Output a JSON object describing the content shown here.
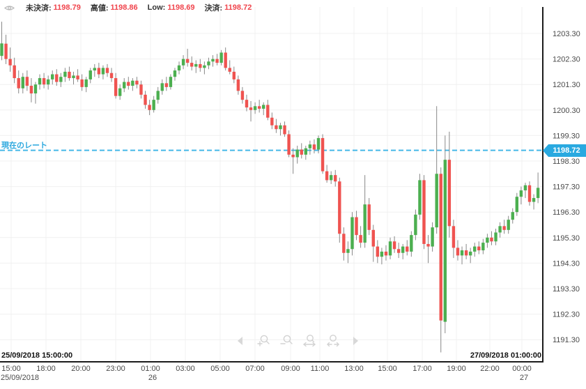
{
  "legend": {
    "items": [
      {
        "label": "未決済:",
        "value": "1198.79"
      },
      {
        "label": "高値:",
        "value": "1198.86"
      },
      {
        "label": "Low:",
        "value": "1198.69"
      },
      {
        "label": "決済:",
        "value": "1198.72"
      }
    ]
  },
  "current_rate": {
    "label": "現在のレート",
    "value": "1198.72"
  },
  "range_start": "25/09/2018 15:00:00",
  "range_end": "27/09/2018 01:00:00",
  "toolbar": {
    "icons": [
      "pan-left",
      "zoom-in",
      "zoom-out",
      "zoom-x",
      "zoom-reset",
      "pan-right"
    ]
  },
  "colors": {
    "up": "#4caf50",
    "down": "#ef5350",
    "grid": "#f0f0f0",
    "axis": "#1b1b1b",
    "axis_text": "#4a4a4a",
    "rate_line": "#45b8e8",
    "rate_badge": "#29a9e0",
    "legend_value": "#f0444c"
  },
  "chart_data": {
    "type": "candlestick",
    "title": "",
    "xlabel": "",
    "ylabel": "",
    "grid": true,
    "current_rate": 1198.72,
    "y_axis": {
      "ticks": [
        1203.3,
        1202.3,
        1201.3,
        1200.3,
        1199.3,
        1198.3,
        1197.3,
        1196.3,
        1195.3,
        1194.3,
        1193.3,
        1192.3,
        1191.3
      ],
      "ylim": [
        1190.8,
        1203.8
      ]
    },
    "x_axis": {
      "ticks": [
        {
          "label": "15:00",
          "sub": "25/09/2018"
        },
        {
          "label": "18:00"
        },
        {
          "label": "20:00"
        },
        {
          "label": "23:00"
        },
        {
          "label": "01:00",
          "sub": "26"
        },
        {
          "label": "03:00"
        },
        {
          "label": "05:00"
        },
        {
          "label": "07:00"
        },
        {
          "label": "09:00"
        },
        {
          "label": "11:00"
        },
        {
          "label": "13:00"
        },
        {
          "label": "15:00"
        },
        {
          "label": "17:00"
        },
        {
          "label": "19:00"
        },
        {
          "label": "22:00"
        },
        {
          "label": "00:00",
          "sub": "27"
        }
      ]
    },
    "candles_format": [
      "open",
      "high",
      "low",
      "close"
    ],
    "candles": [
      [
        1202.42,
        1203.76,
        1202.25,
        1202.91
      ],
      [
        1202.9,
        1203.25,
        1202.1,
        1202.3
      ],
      [
        1202.3,
        1202.75,
        1201.8,
        1202.05
      ],
      [
        1202.05,
        1202.35,
        1201.35,
        1201.55
      ],
      [
        1201.55,
        1201.85,
        1200.95,
        1201.15
      ],
      [
        1201.15,
        1201.75,
        1200.95,
        1201.6
      ],
      [
        1201.6,
        1201.85,
        1201.05,
        1201.25
      ],
      [
        1201.25,
        1201.55,
        1200.6,
        1200.95
      ],
      [
        1200.95,
        1201.4,
        1200.55,
        1201.3
      ],
      [
        1201.3,
        1201.7,
        1201.1,
        1201.55
      ],
      [
        1201.55,
        1201.75,
        1201.15,
        1201.3
      ],
      [
        1201.3,
        1201.65,
        1201.1,
        1201.5
      ],
      [
        1201.5,
        1201.85,
        1201.3,
        1201.7
      ],
      [
        1201.7,
        1201.9,
        1201.25,
        1201.4
      ],
      [
        1201.4,
        1201.75,
        1201.2,
        1201.6
      ],
      [
        1201.6,
        1201.95,
        1201.4,
        1201.8
      ],
      [
        1201.8,
        1202.0,
        1201.45,
        1201.55
      ],
      [
        1201.55,
        1201.8,
        1201.3,
        1201.65
      ],
      [
        1201.65,
        1201.9,
        1201.4,
        1201.5
      ],
      [
        1201.5,
        1201.7,
        1201.05,
        1201.2
      ],
      [
        1201.2,
        1201.6,
        1201.0,
        1201.5
      ],
      [
        1201.5,
        1201.95,
        1201.35,
        1201.85
      ],
      [
        1201.85,
        1202.1,
        1201.6,
        1201.95
      ],
      [
        1201.95,
        1202.15,
        1201.55,
        1201.7
      ],
      [
        1201.7,
        1202.05,
        1201.5,
        1201.95
      ],
      [
        1201.95,
        1202.1,
        1201.6,
        1201.75
      ],
      [
        1201.75,
        1201.95,
        1201.4,
        1201.55
      ],
      [
        1201.55,
        1201.75,
        1200.75,
        1200.85
      ],
      [
        1200.85,
        1201.3,
        1200.7,
        1201.15
      ],
      [
        1201.15,
        1201.55,
        1201.0,
        1201.4
      ],
      [
        1201.4,
        1201.6,
        1201.1,
        1201.25
      ],
      [
        1201.25,
        1201.55,
        1201.05,
        1201.45
      ],
      [
        1201.45,
        1201.6,
        1201.15,
        1201.3
      ],
      [
        1201.3,
        1201.45,
        1200.75,
        1200.9
      ],
      [
        1200.9,
        1201.05,
        1200.35,
        1200.5
      ],
      [
        1200.5,
        1200.7,
        1200.1,
        1200.3
      ],
      [
        1200.3,
        1200.85,
        1200.2,
        1200.7
      ],
      [
        1200.7,
        1201.2,
        1200.55,
        1201.05
      ],
      [
        1201.05,
        1201.5,
        1200.9,
        1201.35
      ],
      [
        1201.35,
        1201.6,
        1201.05,
        1201.2
      ],
      [
        1201.2,
        1201.7,
        1201.1,
        1201.6
      ],
      [
        1201.6,
        1201.95,
        1201.45,
        1201.85
      ],
      [
        1201.85,
        1202.2,
        1201.7,
        1202.05
      ],
      [
        1202.05,
        1202.45,
        1201.9,
        1202.3
      ],
      [
        1202.3,
        1202.7,
        1202.0,
        1202.15
      ],
      [
        1202.15,
        1202.4,
        1201.85,
        1202.0
      ],
      [
        1202.0,
        1202.25,
        1201.75,
        1202.1
      ],
      [
        1202.1,
        1202.3,
        1201.8,
        1201.95
      ],
      [
        1201.95,
        1202.2,
        1201.7,
        1202.05
      ],
      [
        1202.05,
        1202.35,
        1201.9,
        1202.2
      ],
      [
        1202.2,
        1202.45,
        1202.0,
        1202.3
      ],
      [
        1202.3,
        1202.5,
        1202.05,
        1202.15
      ],
      [
        1202.15,
        1202.65,
        1202.05,
        1202.55
      ],
      [
        1202.55,
        1202.75,
        1201.85,
        1201.95
      ],
      [
        1201.95,
        1202.25,
        1201.7,
        1201.8
      ],
      [
        1201.8,
        1202.0,
        1201.35,
        1201.5
      ],
      [
        1201.5,
        1201.65,
        1200.9,
        1201.05
      ],
      [
        1201.05,
        1201.2,
        1200.55,
        1200.7
      ],
      [
        1200.7,
        1200.9,
        1200.25,
        1200.4
      ],
      [
        1200.4,
        1200.65,
        1199.85,
        1200.3
      ],
      [
        1200.3,
        1200.6,
        1200.15,
        1200.45
      ],
      [
        1200.45,
        1200.7,
        1200.2,
        1200.35
      ],
      [
        1200.35,
        1200.6,
        1200.1,
        1200.5
      ],
      [
        1200.5,
        1200.7,
        1199.9,
        1200.0
      ],
      [
        1200.0,
        1200.2,
        1199.55,
        1199.7
      ],
      [
        1199.7,
        1199.95,
        1199.4,
        1199.55
      ],
      [
        1199.55,
        1199.8,
        1199.3,
        1199.7
      ],
      [
        1199.7,
        1199.85,
        1199.25,
        1199.35
      ],
      [
        1199.35,
        1199.5,
        1198.45,
        1198.55
      ],
      [
        1198.55,
        1198.8,
        1197.8,
        1198.45
      ],
      [
        1198.45,
        1198.9,
        1198.2,
        1198.75
      ],
      [
        1198.75,
        1199.0,
        1198.4,
        1198.55
      ],
      [
        1198.55,
        1198.9,
        1198.35,
        1198.8
      ],
      [
        1198.8,
        1199.1,
        1198.55,
        1198.95
      ],
      [
        1198.95,
        1199.15,
        1198.6,
        1198.75
      ],
      [
        1198.75,
        1199.3,
        1198.6,
        1199.2
      ],
      [
        1199.2,
        1199.35,
        1197.8,
        1197.9
      ],
      [
        1197.9,
        1198.15,
        1197.45,
        1197.55
      ],
      [
        1197.55,
        1197.9,
        1197.4,
        1197.75
      ],
      [
        1197.75,
        1197.95,
        1197.3,
        1197.5
      ],
      [
        1197.5,
        1197.65,
        1195.1,
        1195.45
      ],
      [
        1195.45,
        1195.7,
        1194.4,
        1194.7
      ],
      [
        1194.7,
        1195.15,
        1194.3,
        1194.85
      ],
      [
        1194.85,
        1196.3,
        1194.6,
        1196.1
      ],
      [
        1196.1,
        1196.35,
        1195.2,
        1195.4
      ],
      [
        1195.4,
        1195.75,
        1194.9,
        1195.1
      ],
      [
        1195.1,
        1197.75,
        1194.9,
        1196.6
      ],
      [
        1196.6,
        1196.85,
        1195.4,
        1195.6
      ],
      [
        1195.6,
        1195.8,
        1194.35,
        1194.95
      ],
      [
        1194.95,
        1195.2,
        1194.3,
        1194.55
      ],
      [
        1194.55,
        1194.9,
        1194.25,
        1194.75
      ],
      [
        1194.75,
        1195.0,
        1194.4,
        1194.6
      ],
      [
        1194.6,
        1195.3,
        1194.45,
        1195.15
      ],
      [
        1195.15,
        1195.35,
        1194.7,
        1194.85
      ],
      [
        1194.85,
        1195.1,
        1194.5,
        1194.7
      ],
      [
        1194.7,
        1195.05,
        1194.45,
        1194.95
      ],
      [
        1194.95,
        1195.2,
        1194.6,
        1194.75
      ],
      [
        1194.75,
        1195.55,
        1194.55,
        1195.4
      ],
      [
        1195.4,
        1196.4,
        1195.2,
        1196.2
      ],
      [
        1196.2,
        1197.8,
        1196.0,
        1197.55
      ],
      [
        1197.55,
        1197.75,
        1194.85,
        1195.05
      ],
      [
        1195.05,
        1195.4,
        1194.3,
        1194.95
      ],
      [
        1194.95,
        1195.9,
        1194.75,
        1195.7
      ],
      [
        1195.7,
        1200.45,
        1195.45,
        1197.8
      ],
      [
        1197.8,
        1198.05,
        1190.8,
        1192.05
      ],
      [
        1192.0,
        1199.3,
        1191.55,
        1198.35
      ],
      [
        1198.35,
        1199.45,
        1195.3,
        1195.75
      ],
      [
        1195.75,
        1196.0,
        1194.5,
        1194.9
      ],
      [
        1194.9,
        1195.2,
        1194.4,
        1194.6
      ],
      [
        1194.6,
        1194.95,
        1194.25,
        1194.8
      ],
      [
        1194.8,
        1195.05,
        1194.45,
        1194.6
      ],
      [
        1194.6,
        1194.9,
        1194.3,
        1194.75
      ],
      [
        1194.75,
        1195.1,
        1194.55,
        1194.95
      ],
      [
        1194.95,
        1195.15,
        1194.65,
        1194.8
      ],
      [
        1194.8,
        1195.25,
        1194.65,
        1195.1
      ],
      [
        1195.1,
        1195.45,
        1194.9,
        1195.3
      ],
      [
        1195.3,
        1195.55,
        1195.0,
        1195.15
      ],
      [
        1195.15,
        1195.65,
        1195.0,
        1195.5
      ],
      [
        1195.5,
        1195.9,
        1195.3,
        1195.75
      ],
      [
        1195.75,
        1196.0,
        1195.45,
        1195.6
      ],
      [
        1195.6,
        1196.15,
        1195.45,
        1196.0
      ],
      [
        1196.0,
        1196.45,
        1195.85,
        1196.3
      ],
      [
        1196.3,
        1197.05,
        1196.15,
        1196.9
      ],
      [
        1196.9,
        1197.3,
        1196.6,
        1197.15
      ],
      [
        1197.15,
        1197.45,
        1196.85,
        1197.35
      ],
      [
        1197.35,
        1197.5,
        1196.55,
        1196.7
      ],
      [
        1196.7,
        1197.0,
        1196.4,
        1196.85
      ],
      [
        1196.85,
        1197.85,
        1196.65,
        1197.25
      ]
    ]
  }
}
